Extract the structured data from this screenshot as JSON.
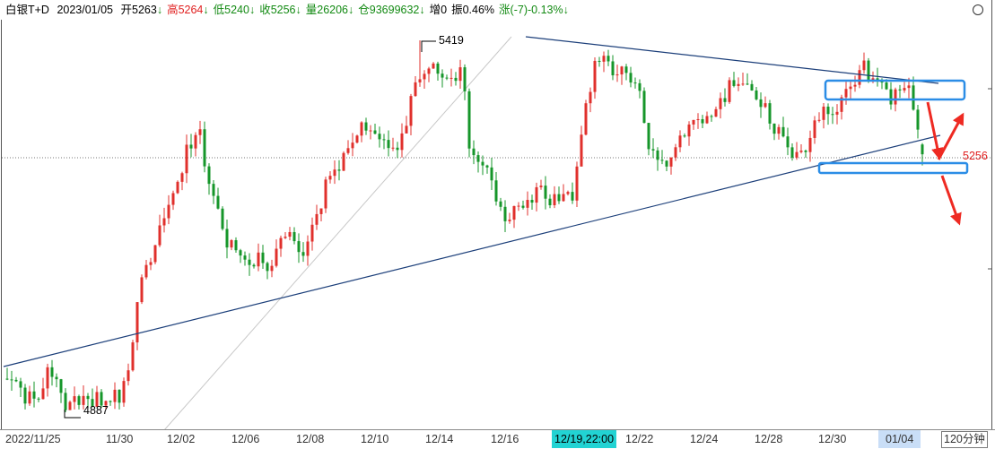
{
  "header": {
    "symbol": "白银T+D",
    "date": "2023/01/05",
    "items": [
      {
        "label": "开5263",
        "arrow": "↓",
        "color": "#000000",
        "arrow_color": "#138a13"
      },
      {
        "label": "高5264",
        "arrow": "↓",
        "color": "#e02020",
        "arrow_color": "#138a13"
      },
      {
        "label": "低5240",
        "arrow": "↓",
        "color": "#138a13",
        "arrow_color": "#138a13"
      },
      {
        "label": "收5256",
        "arrow": "↓",
        "color": "#138a13",
        "arrow_color": "#138a13"
      },
      {
        "label": "量26206",
        "arrow": "↓",
        "color": "#138a13",
        "arrow_color": "#138a13"
      },
      {
        "label": "仓93699632",
        "arrow": "↓",
        "color": "#138a13",
        "arrow_color": "#138a13"
      },
      {
        "label": "增0",
        "arrow": "",
        "color": "#000000",
        "arrow_color": "#000000"
      },
      {
        "label": "振0.46%",
        "arrow": "",
        "color": "#000000",
        "arrow_color": "#000000"
      },
      {
        "label": "涨(-7)-0.13%",
        "arrow": "↓",
        "color": "#138a13",
        "arrow_color": "#138a13"
      }
    ]
  },
  "chart_data": {
    "type": "bar",
    "style": "candlestick",
    "x_labels": [
      "2022/11/25",
      "11/30",
      "12/02",
      "12/06",
      "12/08",
      "12/10",
      "12/14",
      "12/16",
      "12/19,22:00",
      "12/22",
      "12/24",
      "12/28",
      "12/30",
      "01/04"
    ],
    "period": "120分钟",
    "marks": {
      "high": "5419",
      "low": "4887",
      "last": "5256"
    },
    "grid": false
  },
  "colors": {
    "up": "#e0302c",
    "down": "#16962a",
    "trendline": "#1c3f7a",
    "box": "#2b8de6",
    "arrow": "#ee2a22",
    "last_price": "#e02020"
  }
}
